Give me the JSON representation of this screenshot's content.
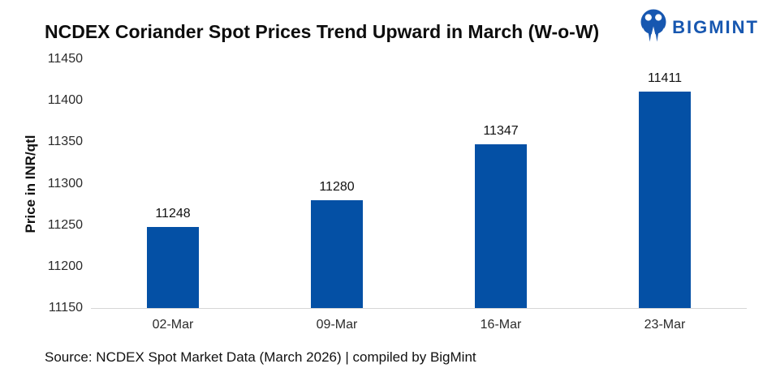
{
  "title": "NCDEX Coriander Spot Prices Trend Upward in March (W-o-W)",
  "logo": {
    "text": "BIGMINT",
    "icon": "bigmint-owl-icon",
    "color": "#1757b0"
  },
  "source": "Source: NCDEX Spot Market Data (March 2026) | compiled by BigMint",
  "colors": {
    "bar": "#0450a5",
    "axis_line": "#d6d6d6",
    "text": "#2b2b2b",
    "title_text": "#0d0d0d",
    "logo_blue": "#1757b0"
  },
  "chart_data": {
    "type": "bar",
    "title": "NCDEX Coriander Spot Prices Trend Upward in March (W-o-W)",
    "categories": [
      "02-Mar",
      "09-Mar",
      "16-Mar",
      "23-Mar"
    ],
    "values": [
      11248,
      11280,
      11347,
      11411
    ],
    "xlabel": "",
    "ylabel": "Price in INR/qtl",
    "ylim": [
      11150,
      11450
    ],
    "yticks": [
      11150,
      11200,
      11250,
      11300,
      11350,
      11400,
      11450
    ],
    "ytick_step": 50,
    "grid": false,
    "legend": false,
    "data_labels": true,
    "bar_color": "#0450a5"
  }
}
